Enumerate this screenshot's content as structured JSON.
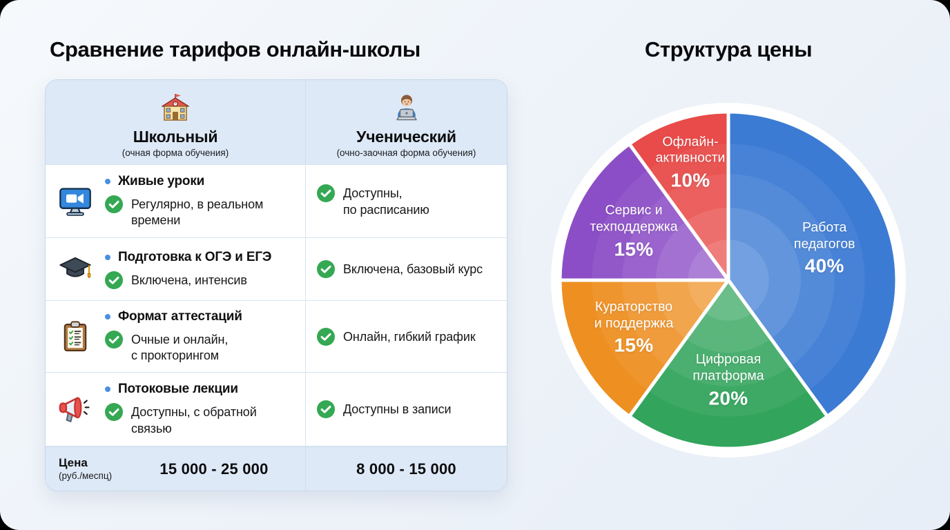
{
  "left": {
    "title": "Сравнение тарифов онлайн-школы",
    "table": {
      "columns": [
        {
          "icon": "school-building-icon",
          "name": "Школьный",
          "subtitle": "(очная форма обучения)"
        },
        {
          "icon": "student-laptop-icon",
          "name": "Ученический",
          "subtitle": "(очно-заочная форма обучения)"
        }
      ],
      "rows": [
        {
          "icon": "video-monitor-icon",
          "feature": "Живые уроки",
          "col1": "Регулярно, в реальном\nвремени",
          "col2": "Доступны,\nпо расписанию"
        },
        {
          "icon": "graduation-cap-icon",
          "feature": "Подготовка к ОГЭ и ЕГЭ",
          "col1": "Включена, интенсив",
          "col2": "Включена, базовый курс"
        },
        {
          "icon": "clipboard-checklist-icon",
          "feature": "Формат аттестаций",
          "col1": "Очные и онлайн,\nс прокторингом",
          "col2": "Онлайн, гибкий график"
        },
        {
          "icon": "megaphone-icon",
          "feature": "Потоковые лекции",
          "col1": "Доступны, с обратной\nсвязью",
          "col2": "Доступны в записи"
        }
      ],
      "price_row": {
        "label": "Цена",
        "sublabel": "(руб./меспц)",
        "col1": "15 000 - 25 000",
        "col2": "8 000 - 15 000"
      },
      "check_icon_color": "#34a853",
      "bullet_color": "#4a8fe0"
    }
  },
  "right": {
    "title": "Структура цены"
  },
  "chart_data": {
    "type": "pie",
    "title": "Структура цены",
    "legend": "none",
    "start_angle_deg": 0,
    "direction": "clockwise",
    "total": 100,
    "slices": [
      {
        "label": "Работа педагогов",
        "label_lines": [
          "Работа",
          "педагогов"
        ],
        "value": 40,
        "percent_label": "40%",
        "color": "#3c7bd4",
        "label_r": 0.6
      },
      {
        "label": "Цифровая платформа",
        "label_lines": [
          "Цифровая",
          "платформа"
        ],
        "value": 20,
        "percent_label": "20%",
        "color": "#32a45c",
        "label_r": 0.6
      },
      {
        "label": "Кураторство и поддержка",
        "label_lines": [
          "Кураторство",
          "и поддержка"
        ],
        "value": 15,
        "percent_label": "15%",
        "color": "#ee8f21",
        "label_r": 0.63
      },
      {
        "label": "Сервис и техподдержка",
        "label_lines": [
          "Сервис и",
          "техподдержка"
        ],
        "value": 15,
        "percent_label": "15%",
        "color": "#8c4ec6",
        "label_r": 0.63
      },
      {
        "label": "Офлайн-активности",
        "label_lines": [
          "Офлайн-",
          "активности"
        ],
        "value": 10,
        "percent_label": "10%",
        "color": "#e84b49",
        "label_r": 0.73
      }
    ]
  }
}
